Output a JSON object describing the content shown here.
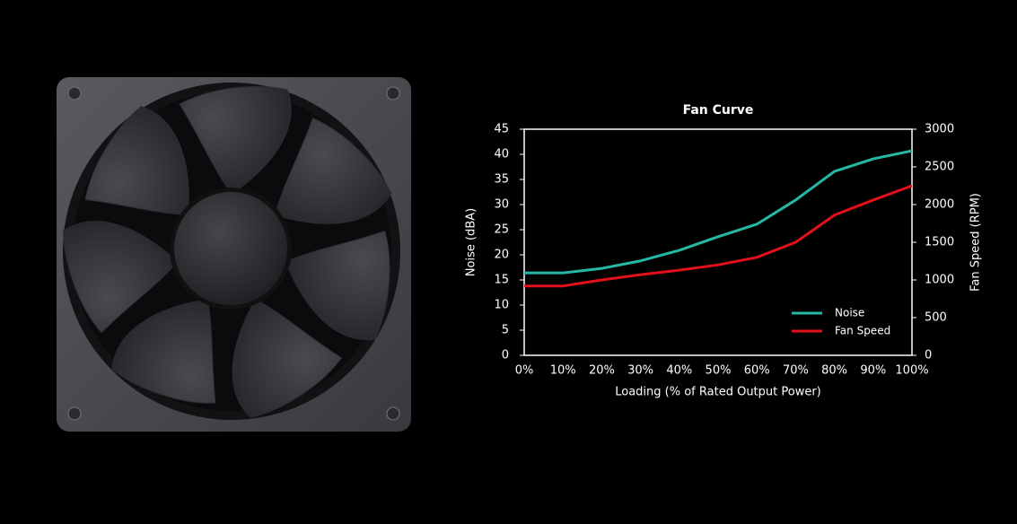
{
  "chart_data": {
    "type": "line",
    "title": "Fan Curve",
    "x_label": "Loading (% of Rated Output Power)",
    "y_label": "Noise (dBA)",
    "y2_label": "Fan Speed (RPM)",
    "categories": [
      "0%",
      "10%",
      "20%",
      "30%",
      "40%",
      "50%",
      "60%",
      "70%",
      "80%",
      "90%",
      "100%"
    ],
    "series": [
      {
        "name": "Noise",
        "color": "#26b8a6",
        "values": [
          16.4,
          16.4,
          17.3,
          18.8,
          20.9,
          23.6,
          26.1,
          30.9,
          36.6,
          39.1,
          40.7
        ]
      },
      {
        "name": "Fan Speed",
        "color": "#e3101c",
        "axis": "y2",
        "values": [
          920,
          920,
          1000,
          1070,
          1130,
          1200,
          1300,
          1500,
          1860,
          2060,
          2250
        ]
      }
    ],
    "ylim": [
      0,
      45
    ],
    "yticks": [
      0,
      5,
      10,
      15,
      20,
      25,
      30,
      35,
      40,
      45
    ],
    "y2lim": [
      0,
      3000
    ],
    "y2ticks": [
      0,
      500,
      1000,
      1500,
      2000,
      2500,
      3000
    ],
    "legend": "lower right"
  }
}
